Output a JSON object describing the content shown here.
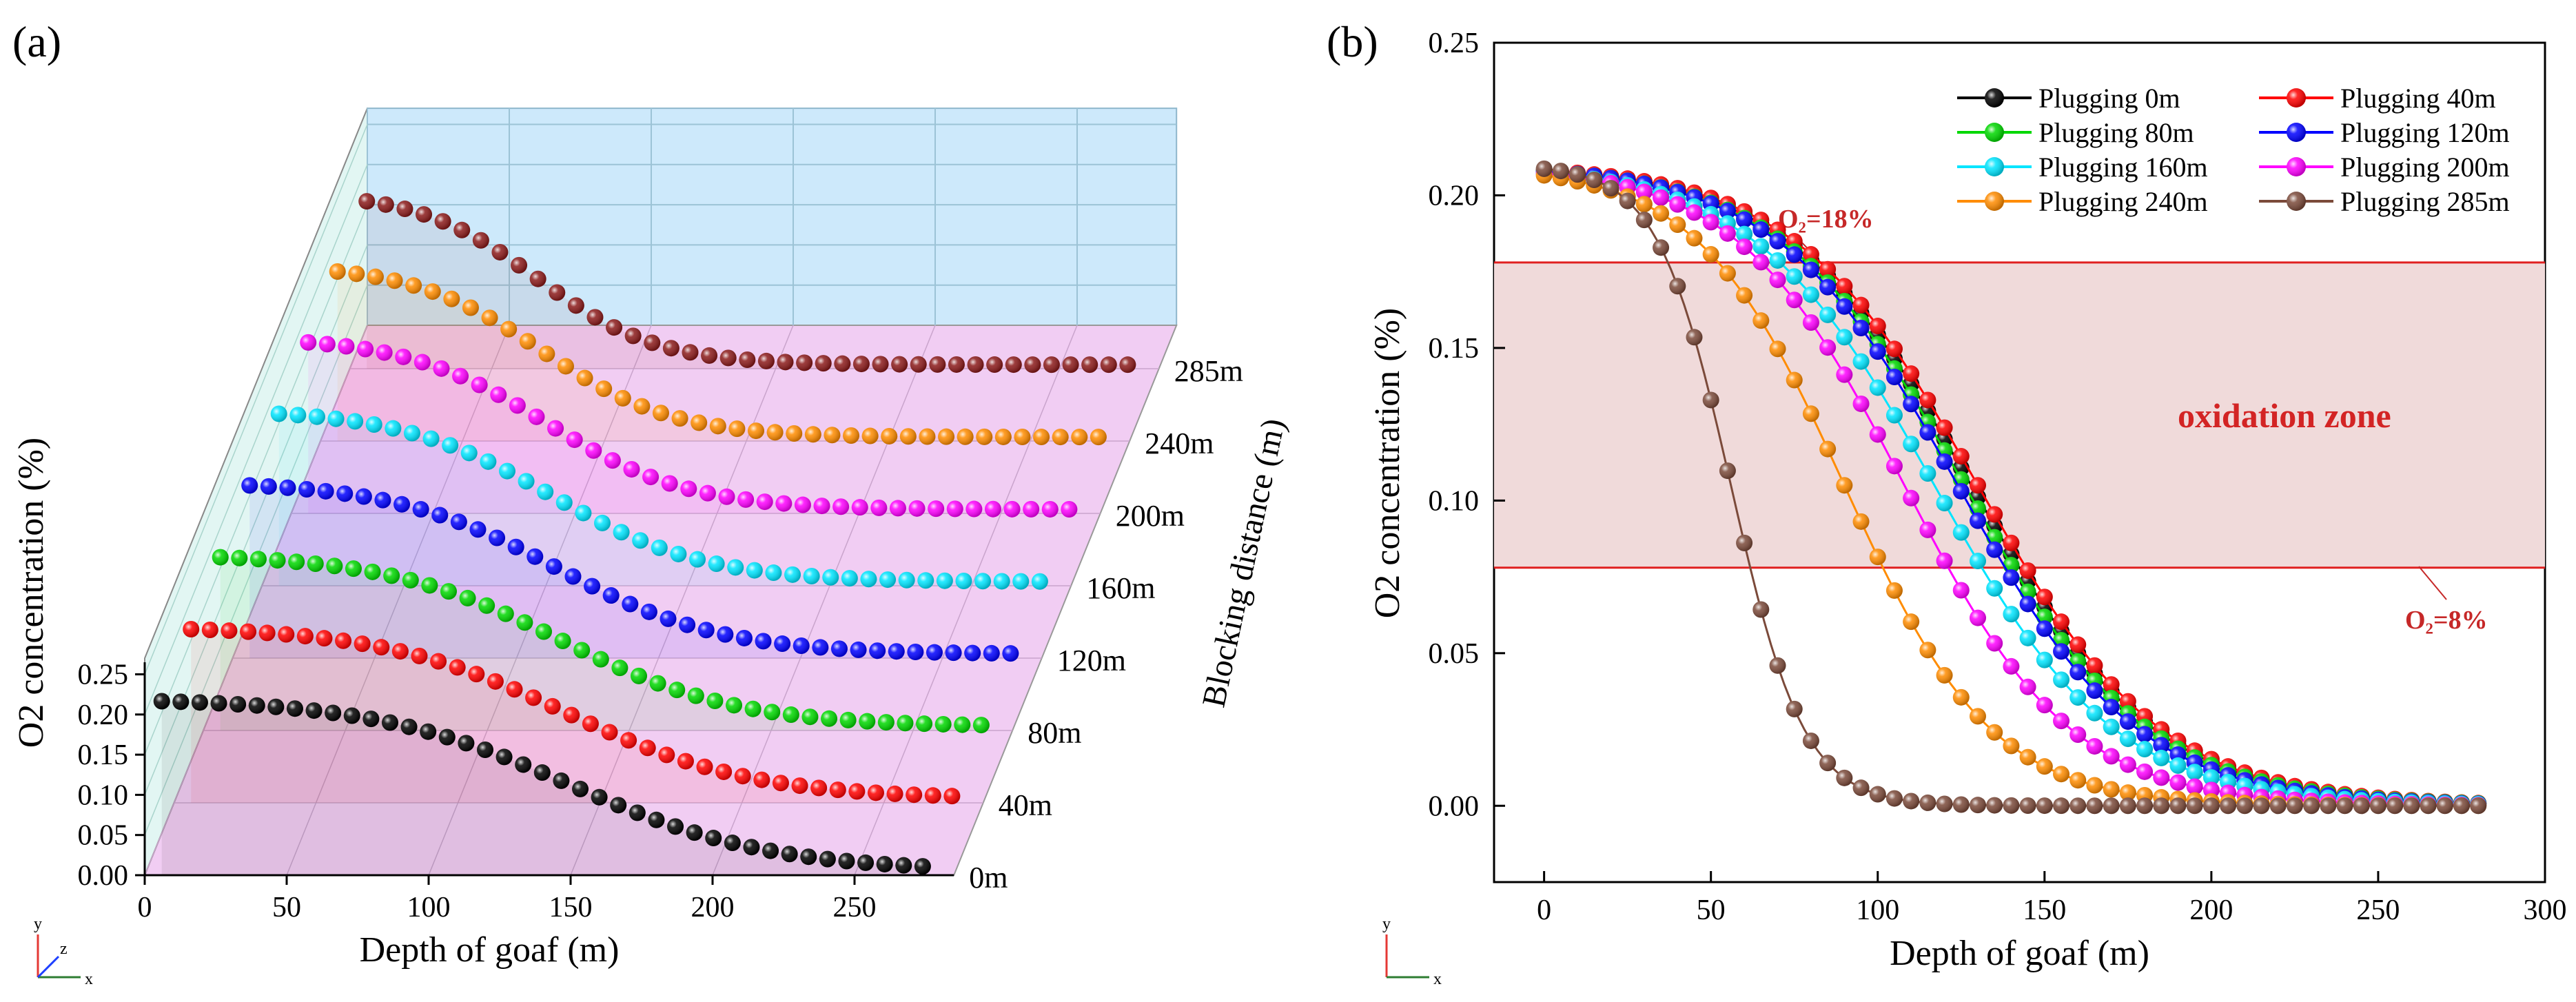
{
  "panel_a": {
    "label": "(a)"
  },
  "panel_b": {
    "label": "(b)"
  },
  "chart_data": [
    {
      "type": "scatter",
      "title": "",
      "panel": "(a)",
      "view": "3d waterfall",
      "xlabel": "Depth of goaf (m)",
      "ylabel": "O2 concentration (%)",
      "zlabel": "Blocking distance (m)",
      "xlim": [
        0,
        285
      ],
      "ylim": [
        0,
        0.25
      ],
      "xticks": [
        "0",
        "50",
        "100",
        "150",
        "200",
        "250"
      ],
      "yticks": [
        "0.00",
        "0.05",
        "0.10",
        "0.15",
        "0.20",
        "0.25"
      ],
      "zticks": [
        "0m",
        "40m",
        "80m",
        "120m",
        "160m",
        "200m",
        "240m",
        "285m"
      ],
      "series": [
        {
          "name": "0m",
          "start": 0,
          "color": "#000000"
        },
        {
          "name": "40m",
          "start": 40,
          "color": "#ff0000"
        },
        {
          "name": "80m",
          "start": 80,
          "color": "#00d800"
        },
        {
          "name": "120m",
          "start": 120,
          "color": "#0000ff"
        },
        {
          "name": "160m",
          "start": 160,
          "color": "#00e5ff"
        },
        {
          "name": "200m",
          "start": 200,
          "color": "#ff00ff"
        },
        {
          "name": "240m",
          "start": 240,
          "color": "#ff8c00"
        },
        {
          "name": "285m",
          "start": 285,
          "color": "#8b1a1a"
        }
      ],
      "axis_indicator": [
        "y",
        "z",
        "x"
      ]
    },
    {
      "type": "line",
      "title": "",
      "panel": "(b)",
      "xlabel": "Depth of goaf (m)",
      "ylabel": "O2 concentration (%)",
      "xlim": [
        -15,
        300
      ],
      "ylim": [
        -0.025,
        0.25
      ],
      "xticks": [
        "0",
        "50",
        "100",
        "150",
        "200",
        "250",
        "300"
      ],
      "yticks": [
        "0.00",
        "0.05",
        "0.10",
        "0.15",
        "0.20",
        "0.25"
      ],
      "legend": [
        "Plugging 0m",
        "Plugging 40m",
        "Plugging 80m",
        "Plugging 120m",
        "Plugging 160m",
        "Plugging 200m",
        "Plugging 240m",
        "Plugging 285m"
      ],
      "legend_position": "top-right",
      "series": [
        {
          "name": "Plugging 0m",
          "color": "#000000",
          "x0": 128,
          "w": 55
        },
        {
          "name": "Plugging 40m",
          "color": "#ff0000",
          "x0": 130,
          "w": 55
        },
        {
          "name": "Plugging 80m",
          "color": "#00d800",
          "x0": 126,
          "w": 55
        },
        {
          "name": "Plugging 120m",
          "color": "#0000ff",
          "x0": 124,
          "w": 54
        },
        {
          "name": "Plugging 160m",
          "color": "#00e5ff",
          "x0": 117,
          "w": 54
        },
        {
          "name": "Plugging 200m",
          "color": "#ff00ff",
          "x0": 108,
          "w": 50
        },
        {
          "name": "Plugging 240m",
          "color": "#ff8c00",
          "x0": 90,
          "w": 44
        },
        {
          "name": "Plugging 285m",
          "color": "#7b4a3a",
          "x0": 56,
          "w": 22
        }
      ],
      "annotations": {
        "upper_line": 0.178,
        "lower_line": 0.078,
        "upper_label": "O₂=18%",
        "lower_label": "O₂=8%",
        "zone_label": "oxidation zone"
      },
      "axis_indicator": [
        "y",
        "x"
      ]
    }
  ]
}
